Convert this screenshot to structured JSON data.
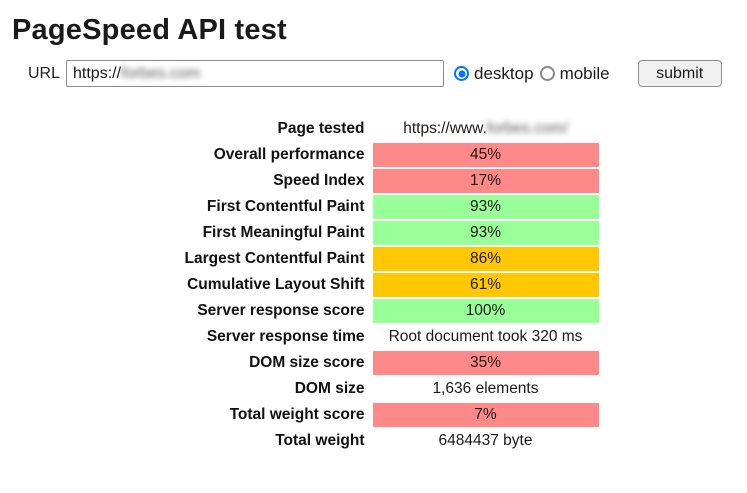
{
  "page": {
    "title": "PageSpeed API test"
  },
  "form": {
    "url_label": "URL",
    "url_value_prefix": "https://",
    "url_value_blurred": "forbes.com",
    "radios": [
      {
        "label": "desktop",
        "selected": true
      },
      {
        "label": "mobile",
        "selected": false
      }
    ],
    "submit_label": "submit"
  },
  "colors": {
    "red": "#ff8888",
    "orange": "#ffc800",
    "green": "#99ff99",
    "radio_accent": "#0075ff"
  },
  "results": {
    "rows": [
      {
        "label": "Page tested",
        "value_prefix": "https://www.",
        "blurred_part": "forbes.com/",
        "color": null
      },
      {
        "label": "Overall performance",
        "value": "45%",
        "color": "red"
      },
      {
        "label": "Speed Index",
        "value": "17%",
        "color": "red"
      },
      {
        "label": "First Contentful Paint",
        "value": "93%",
        "color": "green"
      },
      {
        "label": "First Meaningful Paint",
        "value": "93%",
        "color": "green"
      },
      {
        "label": "Largest Contentful Paint",
        "value": "86%",
        "color": "orange"
      },
      {
        "label": "Cumulative Layout Shift",
        "value": "61%",
        "color": "orange"
      },
      {
        "label": "Server response score",
        "value": "100%",
        "color": "green"
      },
      {
        "label": "Server response time",
        "value": "Root document took 320 ms",
        "color": null
      },
      {
        "label": "DOM size score",
        "value": "35%",
        "color": "red"
      },
      {
        "label": "DOM size",
        "value": "1,636 elements",
        "color": null
      },
      {
        "label": "Total weight score",
        "value": "7%",
        "color": "red"
      },
      {
        "label": "Total weight",
        "value": "6484437 byte",
        "color": null
      }
    ]
  }
}
